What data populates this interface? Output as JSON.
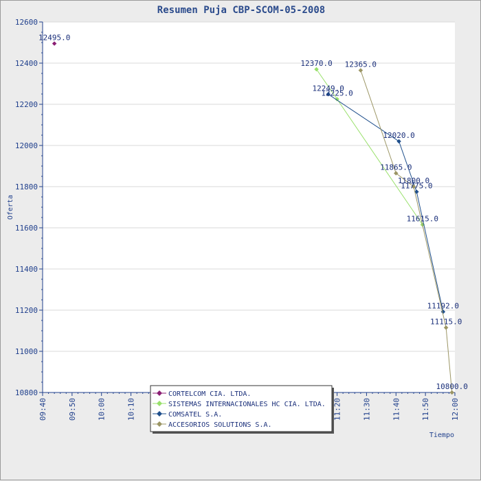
{
  "chart_data": {
    "type": "line",
    "title": "Resumen Puja CBP-SCOM-05-2008",
    "xlabel": "Tiempo",
    "ylabel": "Oferta",
    "xlim": [
      "09:40",
      "12:00"
    ],
    "ylim": [
      10800,
      12600
    ],
    "x_ticks": [
      "09:40",
      "09:50",
      "10:00",
      "10:10",
      "10:20",
      "10:30",
      "10:40",
      "10:50",
      "11:00",
      "11:10",
      "11:20",
      "11:30",
      "11:40",
      "11:50",
      "12:00"
    ],
    "y_ticks": [
      10800,
      11000,
      11200,
      11400,
      11600,
      11800,
      12000,
      12200,
      12400,
      12600
    ],
    "grid": "horizontal",
    "legend_position": "bottom-center",
    "series": [
      {
        "name": "CORTELCOM CIA. LTDA.",
        "color": "#8b1f74",
        "points": [
          {
            "x": "09:44",
            "y": 12495,
            "label": "12495.0"
          }
        ]
      },
      {
        "name": "SISTEMAS INTERNACIONALES HC CIA. LTDA.",
        "color": "#98e06a",
        "points": [
          {
            "x": "11:13",
            "y": 12370,
            "label": "12370.0"
          },
          {
            "x": "11:20",
            "y": 12225,
            "label": "12225.0"
          },
          {
            "x": "11:49",
            "y": 11615,
            "label": "11615.0"
          }
        ]
      },
      {
        "name": "COMSATEL S.A.",
        "color": "#1f4f8c",
        "points": [
          {
            "x": "11:17",
            "y": 12249,
            "label": "12249.0"
          },
          {
            "x": "11:41",
            "y": 12020,
            "label": "12020.0"
          },
          {
            "x": "11:47",
            "y": 11775,
            "label": "11775.0"
          },
          {
            "x": "11:56",
            "y": 11192,
            "label": "11192.0"
          }
        ]
      },
      {
        "name": "ACCESORIOS SOLUTIONS S.A.",
        "color": "#9b9564",
        "points": [
          {
            "x": "11:28",
            "y": 12365,
            "label": "12365.0"
          },
          {
            "x": "11:40",
            "y": 11865,
            "label": "11865.0"
          },
          {
            "x": "11:46",
            "y": 11800,
            "label": "11800.0"
          },
          {
            "x": "11:57",
            "y": 11115,
            "label": "11115.0"
          },
          {
            "x": "11:59",
            "y": 10800,
            "label": "10800.0"
          }
        ]
      }
    ]
  }
}
